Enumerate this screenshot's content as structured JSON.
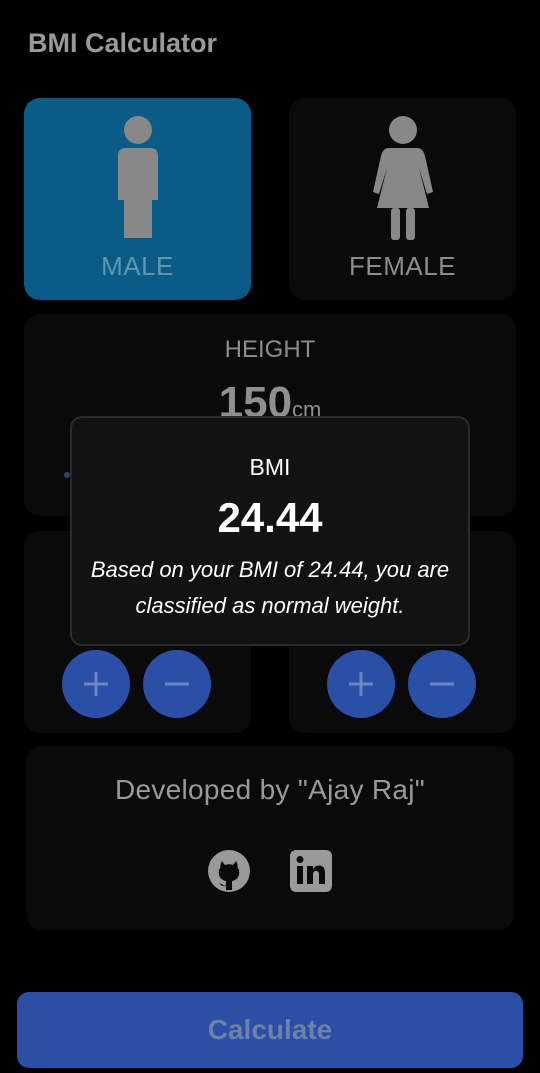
{
  "app": {
    "title": "BMI Calculator"
  },
  "gender": {
    "male_label": "MALE",
    "female_label": "FEMALE",
    "selected": "male"
  },
  "height": {
    "label": "HEIGHT",
    "value": "150",
    "unit": "cm"
  },
  "weight_controls": {
    "plus_icon": "plus-icon",
    "minus_icon": "minus-icon"
  },
  "age_controls": {
    "plus_icon": "plus-icon",
    "minus_icon": "minus-icon"
  },
  "developer": {
    "text": "Developed by \"Ajay Raj\"",
    "links": [
      "github-icon",
      "linkedin-icon"
    ]
  },
  "footer": {
    "calculate_label": "Calculate"
  },
  "dialog": {
    "title": "BMI",
    "value": "24.44",
    "message": "Based on your BMI of 24.44, you are classified as normal weight."
  },
  "colors": {
    "background": "#000000",
    "card": "#0a0a0a",
    "selected_card": "#0a5b86",
    "button": "#2a4fa6",
    "dialog": "#121212"
  }
}
